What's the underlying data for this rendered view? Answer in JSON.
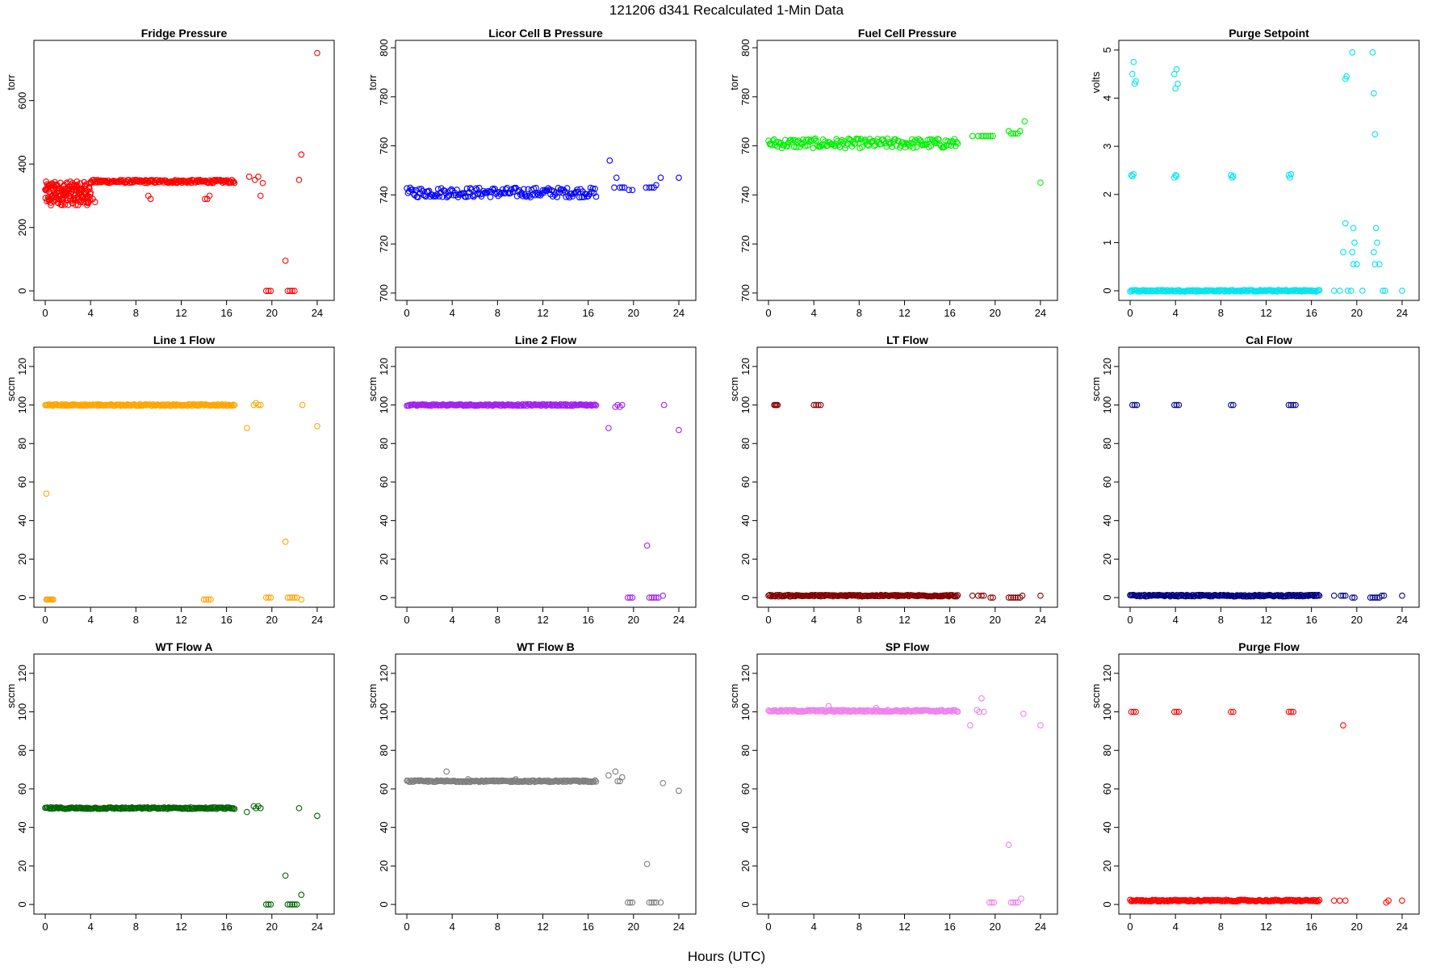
{
  "figure": {
    "title": "121206   d341   Recalculated 1-Min Data",
    "xlabel": "Hours (UTC)"
  },
  "chart_data": [
    {
      "type": "scatter",
      "title": "Fridge Pressure",
      "ylabel": "torr",
      "color": "#ff0000",
      "xlim": [
        -1,
        25.5
      ],
      "ylim": [
        -30,
        790
      ],
      "xticks": [
        "0",
        "4",
        "8",
        "12",
        "16",
        "20",
        "24"
      ],
      "yticks": [
        "0",
        "200",
        "400",
        "600"
      ],
      "series": [
        {
          "kind": "band",
          "x": [
            0,
            4
          ],
          "values": [
            270,
            345
          ],
          "note": "dip near 0-4h"
        },
        {
          "kind": "band",
          "x": [
            4,
            16.7
          ],
          "values": [
            340,
            350
          ]
        },
        {
          "kind": "points",
          "x": [
            0.1,
            0.3,
            0.5,
            4.0,
            4.2,
            4.4,
            9.1,
            9.3,
            14.1,
            14.3,
            14.5,
            18,
            18.5,
            18.8,
            19,
            19.2,
            19.5,
            19.7,
            19.9,
            21.2,
            21.4,
            21.6,
            21.8,
            22,
            22.4,
            22.6,
            24
          ],
          "values": [
            320,
            290,
            270,
            310,
            290,
            280,
            300,
            290,
            290,
            290,
            300,
            360,
            350,
            360,
            300,
            340,
            0,
            0,
            0,
            95,
            0,
            0,
            0,
            0,
            350,
            430,
            750
          ]
        }
      ]
    },
    {
      "type": "scatter",
      "title": "Licor Cell B Pressure",
      "ylabel": "torr",
      "color": "#0000ff",
      "xlim": [
        -1,
        25.5
      ],
      "ylim": [
        697,
        803
      ],
      "xticks": [
        "0",
        "4",
        "8",
        "12",
        "16",
        "20",
        "24"
      ],
      "yticks": [
        "700",
        "720",
        "740",
        "760",
        "780",
        "800"
      ],
      "series": [
        {
          "kind": "band",
          "x": [
            0,
            16.7
          ],
          "values": [
            739,
            743
          ]
        },
        {
          "kind": "points",
          "x": [
            17.9,
            18.3,
            18.5,
            18.8,
            19,
            19.2,
            19.6,
            19.9,
            21.1,
            21.4,
            21.6,
            21.8,
            22,
            22.4,
            24
          ],
          "values": [
            754,
            743,
            747,
            743,
            743,
            743,
            742,
            742,
            743,
            743,
            743,
            743,
            744,
            747,
            747
          ]
        }
      ]
    },
    {
      "type": "scatter",
      "title": "Fuel Cell Pressure",
      "ylabel": "torr",
      "color": "#00ee00",
      "xlim": [
        -1,
        25.5
      ],
      "ylim": [
        697,
        803
      ],
      "xticks": [
        "0",
        "4",
        "8",
        "12",
        "16",
        "20",
        "24"
      ],
      "yticks": [
        "700",
        "720",
        "740",
        "760",
        "780",
        "800"
      ],
      "series": [
        {
          "kind": "band",
          "x": [
            0,
            16.7
          ],
          "values": [
            759,
            763
          ]
        },
        {
          "kind": "points",
          "x": [
            18,
            18.5,
            18.8,
            19,
            19.2,
            19.4,
            19.6,
            19.8,
            21.2,
            21.4,
            21.6,
            21.8,
            22,
            22.2,
            22.6,
            24
          ],
          "values": [
            764,
            764,
            764,
            764,
            764,
            764,
            764,
            764,
            766,
            765,
            765,
            765,
            765,
            766,
            770,
            745
          ]
        }
      ]
    },
    {
      "type": "scatter",
      "title": "Purge Setpoint",
      "ylabel": "volts",
      "color": "#00e5ee",
      "xlim": [
        -1,
        25.5
      ],
      "ylim": [
        -0.2,
        5.2
      ],
      "xticks": [
        "0",
        "4",
        "8",
        "12",
        "16",
        "20",
        "24"
      ],
      "yticks": [
        "0",
        "1",
        "2",
        "3",
        "4",
        "5"
      ],
      "series": [
        {
          "kind": "band",
          "x": [
            0,
            16.7
          ],
          "values": [
            0,
            0
          ]
        },
        {
          "kind": "points",
          "x": [
            0.1,
            0.2,
            0.3,
            0.4,
            0.5,
            0.2,
            0.3,
            3.9,
            4.0,
            4.1,
            4.2,
            3.9,
            4.1,
            4.0,
            8.9,
            9.0,
            9.1,
            14.0,
            14.1,
            14.2,
            18.0,
            18.5,
            18.8,
            19.0,
            19.2,
            19.5,
            19.6,
            19.7,
            19.8,
            20.0,
            20.5,
            21.4,
            21.5,
            21.6,
            21.7,
            21.8,
            22.0,
            22.3,
            22.5,
            24.0,
            19.0,
            19.1,
            19.6,
            19.7,
            21.5,
            21.6
          ],
          "values": [
            2.4,
            2.38,
            2.42,
            4.3,
            4.35,
            4.5,
            4.75,
            2.35,
            2.4,
            2.38,
            4.3,
            4.5,
            4.6,
            4.2,
            2.4,
            2.35,
            2.38,
            2.4,
            2.35,
            2.42,
            0,
            0,
            0.8,
            1.4,
            0,
            0,
            4.95,
            1.3,
            1.0,
            0.55,
            0,
            4.95,
            4.1,
            3.25,
            1.3,
            1.0,
            0.55,
            0,
            0,
            0,
            4.4,
            4.45,
            0.8,
            0.55,
            0.8,
            0.55
          ]
        }
      ]
    },
    {
      "type": "scatter",
      "title": "Line 1 Flow",
      "ylabel": "sccm",
      "color": "#ffa500",
      "xlim": [
        -1,
        25.5
      ],
      "ylim": [
        -5,
        130
      ],
      "xticks": [
        "0",
        "4",
        "8",
        "12",
        "16",
        "20",
        "24"
      ],
      "yticks": [
        "0",
        "20",
        "40",
        "60",
        "80",
        "100",
        "120"
      ],
      "series": [
        {
          "kind": "band",
          "x": [
            0,
            16.7
          ],
          "values": [
            100,
            100
          ]
        },
        {
          "kind": "points",
          "x": [
            0.1,
            0.2,
            0.3,
            0.4,
            0.5,
            0.6,
            0.7,
            0.1,
            14.0,
            14.2,
            14.4,
            14.6,
            17.8,
            18.4,
            18.6,
            18.8,
            19.0,
            19.5,
            19.7,
            19.9,
            21.2,
            21.4,
            21.6,
            21.8,
            22.0,
            22.2,
            22.6,
            22.7,
            24.0
          ],
          "values": [
            -1,
            -1,
            -1,
            -1,
            -1,
            -1,
            -1,
            54,
            -1,
            -1,
            -1,
            -1,
            88,
            100,
            101,
            100,
            100,
            0,
            0,
            0,
            29,
            0,
            0,
            0,
            0,
            0,
            -1,
            100,
            89
          ]
        }
      ]
    },
    {
      "type": "scatter",
      "title": "Line 2 Flow",
      "ylabel": "sccm",
      "color": "#a020f0",
      "xlim": [
        -1,
        25.5
      ],
      "ylim": [
        -5,
        130
      ],
      "xticks": [
        "0",
        "4",
        "8",
        "12",
        "16",
        "20",
        "24"
      ],
      "yticks": [
        "0",
        "20",
        "40",
        "60",
        "80",
        "100",
        "120"
      ],
      "series": [
        {
          "kind": "band",
          "x": [
            0,
            16.7
          ],
          "values": [
            100,
            100
          ]
        },
        {
          "kind": "points",
          "x": [
            17.8,
            18.4,
            18.6,
            18.8,
            19.0,
            19.5,
            19.7,
            19.9,
            21.2,
            21.4,
            21.6,
            21.8,
            22.0,
            22.2,
            22.6,
            22.7,
            24.0
          ],
          "values": [
            88,
            99,
            100,
            99,
            100,
            0,
            0,
            0,
            27,
            0,
            0,
            0,
            0,
            0,
            1,
            100,
            87
          ]
        }
      ]
    },
    {
      "type": "scatter",
      "title": "LT Flow",
      "ylabel": "sccm",
      "color": "#800000",
      "xlim": [
        -1,
        25.5
      ],
      "ylim": [
        -5,
        130
      ],
      "xticks": [
        "0",
        "4",
        "8",
        "12",
        "16",
        "20",
        "24"
      ],
      "yticks": [
        "0",
        "20",
        "40",
        "60",
        "80",
        "100",
        "120"
      ],
      "series": [
        {
          "kind": "band",
          "x": [
            0,
            16.7
          ],
          "values": [
            1,
            1
          ]
        },
        {
          "kind": "points",
          "x": [
            0.5,
            0.6,
            0.7,
            0.8,
            4.0,
            4.2,
            4.4,
            4.6,
            18.0,
            18.5,
            18.8,
            19.0,
            19.6,
            19.8,
            21.2,
            21.4,
            21.6,
            21.8,
            22.0,
            22.2,
            22.4,
            24.0
          ],
          "values": [
            100,
            100,
            100,
            100,
            100,
            100,
            100,
            100,
            1,
            1,
            1,
            1,
            0,
            0,
            0,
            0,
            0,
            0,
            0,
            0,
            1,
            1
          ]
        }
      ]
    },
    {
      "type": "scatter",
      "title": "Cal Flow",
      "ylabel": "sccm",
      "color": "#000080",
      "xlim": [
        -1,
        25.5
      ],
      "ylim": [
        -5,
        130
      ],
      "xticks": [
        "0",
        "4",
        "8",
        "12",
        "16",
        "20",
        "24"
      ],
      "yticks": [
        "0",
        "20",
        "40",
        "60",
        "80",
        "100",
        "120"
      ],
      "series": [
        {
          "kind": "band",
          "x": [
            0,
            16.7
          ],
          "values": [
            1,
            1
          ]
        },
        {
          "kind": "points",
          "x": [
            0.2,
            0.4,
            0.6,
            3.9,
            4.1,
            4.3,
            8.9,
            9.1,
            14.0,
            14.2,
            14.4,
            14.6,
            18.0,
            18.6,
            18.8,
            19.0,
            19.6,
            19.8,
            21.2,
            21.4,
            21.6,
            21.8,
            22.0,
            22.2,
            22.4,
            24.0
          ],
          "values": [
            100,
            100,
            100,
            100,
            100,
            100,
            100,
            100,
            100,
            100,
            100,
            100,
            1,
            1,
            1,
            1,
            0,
            0,
            0,
            0,
            0,
            0,
            0,
            1,
            1,
            1
          ]
        }
      ]
    },
    {
      "type": "scatter",
      "title": "WT Flow A",
      "ylabel": "sccm",
      "color": "#006400",
      "xlim": [
        -1,
        25.5
      ],
      "ylim": [
        -5,
        130
      ],
      "xticks": [
        "0",
        "4",
        "8",
        "12",
        "16",
        "20",
        "24"
      ],
      "yticks": [
        "0",
        "20",
        "40",
        "60",
        "80",
        "100",
        "120"
      ],
      "series": [
        {
          "kind": "band",
          "x": [
            0,
            16.7
          ],
          "values": [
            50,
            50
          ]
        },
        {
          "kind": "points",
          "x": [
            17.8,
            18.4,
            18.6,
            18.8,
            19.0,
            19.5,
            19.7,
            19.9,
            21.2,
            21.4,
            21.6,
            21.8,
            22.0,
            22.2,
            22.4,
            22.6,
            24.0
          ],
          "values": [
            48,
            51,
            50,
            51,
            50,
            0,
            0,
            0,
            15,
            0,
            0,
            0,
            0,
            0,
            50,
            5,
            46
          ]
        }
      ]
    },
    {
      "type": "scatter",
      "title": "WT Flow B",
      "ylabel": "sccm",
      "color": "#7f7f7f",
      "xlim": [
        -1,
        25.5
      ],
      "ylim": [
        -5,
        130
      ],
      "xticks": [
        "0",
        "4",
        "8",
        "12",
        "16",
        "20",
        "24"
      ],
      "yticks": [
        "0",
        "20",
        "40",
        "60",
        "80",
        "100",
        "120"
      ],
      "series": [
        {
          "kind": "band",
          "x": [
            0,
            16.7
          ],
          "values": [
            64,
            64
          ]
        },
        {
          "kind": "points",
          "x": [
            3.5,
            5.4,
            9.6,
            17.8,
            18.4,
            18.6,
            18.8,
            19.0,
            19.5,
            19.7,
            19.9,
            21.2,
            21.4,
            21.6,
            21.8,
            22.0,
            22.4,
            22.6,
            24.0
          ],
          "values": [
            69,
            65,
            65,
            67,
            69,
            64,
            64,
            66,
            1,
            1,
            1,
            21,
            1,
            1,
            1,
            1,
            1,
            63,
            59
          ]
        }
      ]
    },
    {
      "type": "scatter",
      "title": "SP Flow",
      "ylabel": "sccm",
      "color": "#ee82ee",
      "xlim": [
        -1,
        25.5
      ],
      "ylim": [
        -5,
        130
      ],
      "xticks": [
        "0",
        "4",
        "8",
        "12",
        "16",
        "20",
        "24"
      ],
      "yticks": [
        "0",
        "20",
        "40",
        "60",
        "80",
        "100",
        "120"
      ],
      "series": [
        {
          "kind": "band",
          "x": [
            0,
            16.7
          ],
          "values": [
            100,
            101
          ]
        },
        {
          "kind": "points",
          "x": [
            5.3,
            9.5,
            17.8,
            18.4,
            18.6,
            18.8,
            19.0,
            19.5,
            19.7,
            19.9,
            21.2,
            21.4,
            21.6,
            21.8,
            22.0,
            22.3,
            22.5,
            24.0
          ],
          "values": [
            103,
            102,
            93,
            101,
            100,
            107,
            100,
            1,
            1,
            1,
            31,
            1,
            1,
            1,
            1,
            3,
            99,
            93
          ]
        }
      ]
    },
    {
      "type": "scatter",
      "title": "Purge Flow",
      "ylabel": "sccm",
      "color": "#ff0000",
      "xlim": [
        -1,
        25.5
      ],
      "ylim": [
        -5,
        130
      ],
      "xticks": [
        "0",
        "4",
        "8",
        "12",
        "16",
        "20",
        "24"
      ],
      "yticks": [
        "0",
        "20",
        "40",
        "60",
        "80",
        "100",
        "120"
      ],
      "series": [
        {
          "kind": "band",
          "x": [
            0,
            16.7
          ],
          "values": [
            2,
            2
          ]
        },
        {
          "kind": "points",
          "x": [
            0.1,
            0.3,
            0.5,
            3.9,
            4.1,
            4.3,
            8.9,
            9.1,
            14.0,
            14.2,
            14.4,
            18.0,
            18.5,
            18.8,
            19.0,
            22.6,
            22.8,
            24.0
          ],
          "values": [
            100,
            100,
            100,
            100,
            100,
            100,
            100,
            100,
            100,
            100,
            100,
            2,
            2,
            93,
            2,
            1,
            2,
            2
          ]
        }
      ]
    }
  ]
}
